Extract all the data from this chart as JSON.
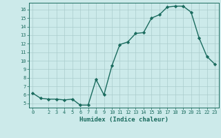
{
  "x": [
    0,
    1,
    2,
    3,
    4,
    5,
    6,
    7,
    8,
    9,
    10,
    11,
    12,
    13,
    14,
    15,
    16,
    17,
    18,
    19,
    20,
    21,
    22,
    23
  ],
  "y": [
    6.2,
    5.6,
    5.5,
    5.5,
    5.4,
    5.5,
    4.8,
    4.8,
    7.8,
    6.0,
    9.4,
    11.9,
    12.2,
    13.2,
    13.3,
    15.0,
    15.4,
    16.3,
    16.4,
    16.4,
    15.7,
    12.7,
    10.5,
    9.6
  ],
  "ylim": [
    4.5,
    16.8
  ],
  "yticks": [
    5,
    6,
    7,
    8,
    9,
    10,
    11,
    12,
    13,
    14,
    15,
    16
  ],
  "xlim": [
    -0.5,
    23.5
  ],
  "xticks": [
    0,
    2,
    3,
    4,
    5,
    6,
    7,
    8,
    9,
    10,
    11,
    12,
    13,
    14,
    15,
    16,
    17,
    18,
    19,
    20,
    21,
    22,
    23
  ],
  "xlabel": "Humidex (Indice chaleur)",
  "line_color": "#1a6b5e",
  "marker_color": "#1a6b5e",
  "bg_color": "#cceaea",
  "grid_color": "#aacccc",
  "axis_color": "#1a6b5e",
  "text_color": "#1a6b5e",
  "tick_fontsize": 5.0,
  "xlabel_fontsize": 6.5,
  "linewidth": 1.0,
  "markersize": 2.2
}
